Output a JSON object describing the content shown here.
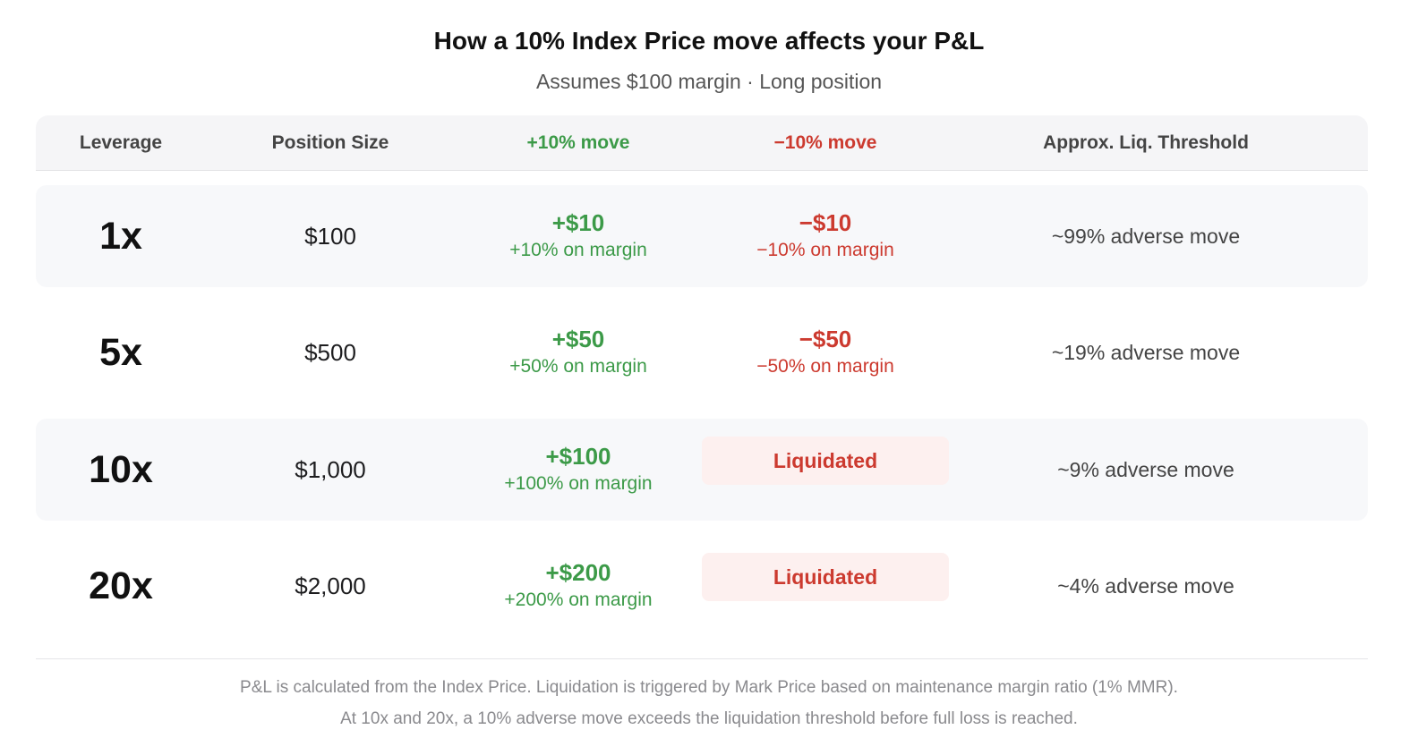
{
  "header": {
    "title": "How a 10% Index Price move affects your P&L",
    "subtitle": "Assumes $100 margin · Long position"
  },
  "table": {
    "columns": {
      "leverage": "Leverage",
      "position_size": "Position Size",
      "plus_move": "+10% move",
      "minus_move": "−10% move",
      "liq_threshold": "Approx. Liq. Threshold"
    },
    "rows": [
      {
        "leverage": "1x",
        "position_size": "$100",
        "plus_main": "+$10",
        "plus_sub": "+10% on margin",
        "minus_main": "−$10",
        "minus_sub": "−10% on margin",
        "liquidated": false,
        "threshold": "~99% adverse move"
      },
      {
        "leverage": "5x",
        "position_size": "$500",
        "plus_main": "+$50",
        "plus_sub": "+50% on margin",
        "minus_main": "−$50",
        "minus_sub": "−50% on margin",
        "liquidated": false,
        "threshold": "~19% adverse move"
      },
      {
        "leverage": "10x",
        "position_size": "$1,000",
        "plus_main": "+$100",
        "plus_sub": "+100% on margin",
        "minus_label": "Liquidated",
        "liquidated": true,
        "threshold": "~9% adverse move"
      },
      {
        "leverage": "20x",
        "position_size": "$2,000",
        "plus_main": "+$200",
        "plus_sub": "+200% on margin",
        "minus_label": "Liquidated",
        "liquidated": true,
        "threshold": "~4% adverse move"
      }
    ]
  },
  "footnote": {
    "line1": "P&L is calculated from the Index Price. Liquidation is triggered by Mark Price based on maintenance margin ratio (1% MMR).",
    "line2": "At 10x and 20x, a 10% adverse move exceeds the liquidation threshold before full loss is reached."
  },
  "colors": {
    "gain": "#3c9a48",
    "loss": "#cc3a2f",
    "liquidated_bg": "#fdf0ef"
  }
}
